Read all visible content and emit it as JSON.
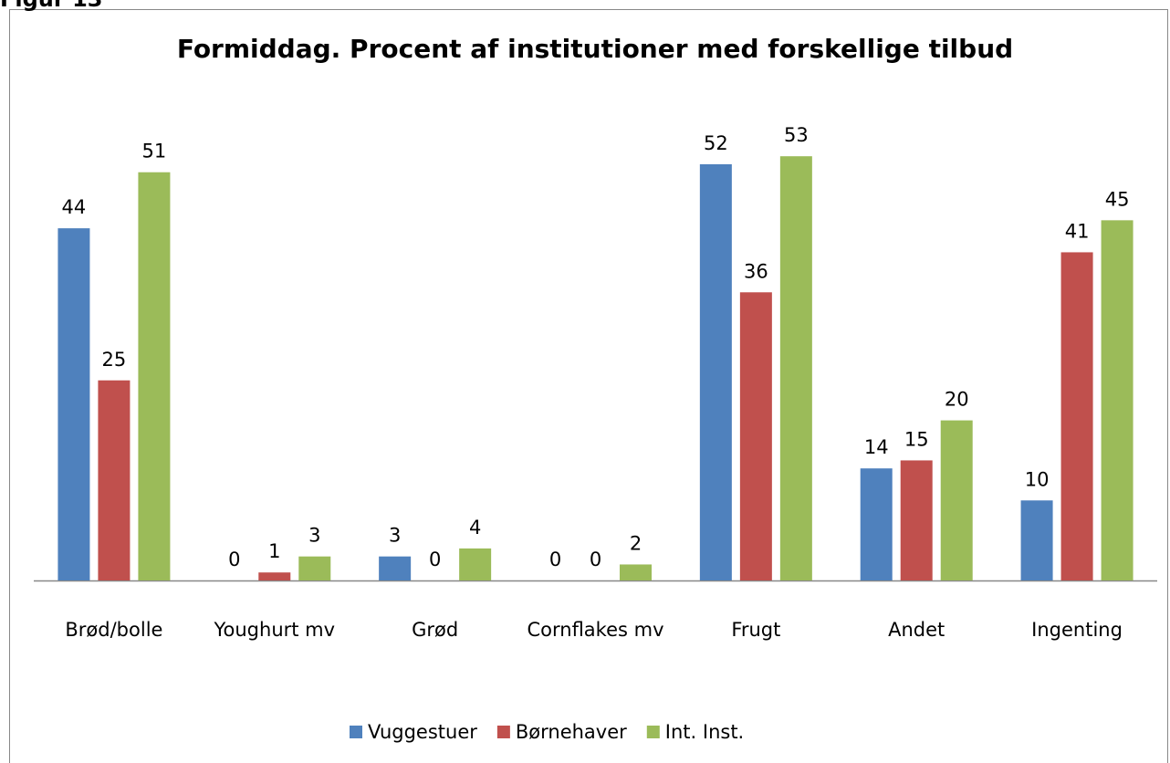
{
  "figure_label": "Figur 13",
  "chart_data": {
    "type": "bar",
    "title": "Formiddag. Procent af institutioner med forskellige tilbud",
    "categories": [
      "Brød/bolle",
      "Youghurt mv",
      "Grød",
      "Cornflakes mv",
      "Frugt",
      "Andet",
      "Ingenting"
    ],
    "series": [
      {
        "name": "Vuggestuer",
        "color": "#4f81bd",
        "values": [
          44,
          0,
          3,
          0,
          52,
          14,
          10
        ]
      },
      {
        "name": "Børnehaver",
        "color": "#c0504d",
        "values": [
          25,
          1,
          0,
          0,
          36,
          15,
          41
        ]
      },
      {
        "name": "Int. Inst.",
        "color": "#9bbb59",
        "values": [
          51,
          3,
          4,
          2,
          53,
          20,
          45
        ]
      }
    ],
    "ylim": [
      0,
      60
    ],
    "legend": "bottom"
  }
}
